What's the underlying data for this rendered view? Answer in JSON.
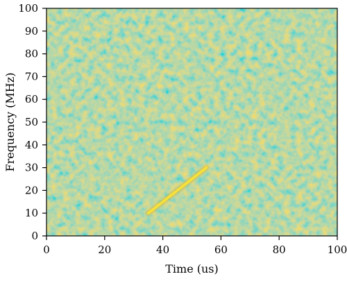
{
  "chart_data": {
    "type": "heatmap",
    "xlabel": "Time (us)",
    "ylabel": "Frequency (MHz)",
    "xlim": [
      0,
      100
    ],
    "ylim": [
      0,
      100
    ],
    "xticks": [
      0,
      20,
      40,
      60,
      80,
      100
    ],
    "yticks": [
      0,
      10,
      20,
      30,
      40,
      50,
      60,
      70,
      80,
      90,
      100
    ],
    "grid": false,
    "colors": {
      "noise_low": "#2aaea6",
      "noise_mid": "#8fbf4e",
      "noise_high": "#d8b83a",
      "signal": "#f7e23a"
    },
    "annotations": [],
    "series": [
      {
        "type": "linear-chirp",
        "points": [
          {
            "x": 35,
            "y": 10
          },
          {
            "x": 55,
            "y": 30
          }
        ]
      }
    ]
  }
}
